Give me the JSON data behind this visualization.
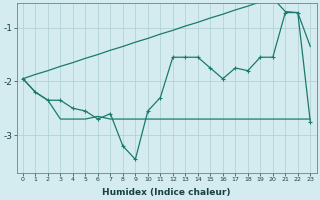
{
  "xlabel": "Humidex (Indice chaleur)",
  "bg_color": "#d4ecef",
  "line_color": "#1a7a6e",
  "grid_color": "#aecdd2",
  "x": [
    0,
    1,
    2,
    3,
    4,
    5,
    6,
    7,
    8,
    9,
    10,
    11,
    12,
    13,
    14,
    15,
    16,
    17,
    18,
    19,
    20,
    21,
    22,
    23
  ],
  "line_straight": [
    -1.95,
    -1.87,
    -1.8,
    -1.72,
    -1.65,
    -1.57,
    -1.5,
    -1.42,
    -1.35,
    -1.27,
    -1.2,
    -1.12,
    -1.05,
    -0.97,
    -0.9,
    -0.82,
    -0.75,
    -0.67,
    -0.6,
    -0.52,
    -0.45,
    -0.7,
    -0.72,
    -1.35
  ],
  "line_jagged": [
    -1.95,
    -2.2,
    -2.35,
    -2.35,
    -2.5,
    -2.55,
    -2.7,
    -2.6,
    -3.2,
    -3.45,
    -2.55,
    -2.3,
    -1.55,
    -1.55,
    -1.55,
    -1.75,
    -1.95,
    -1.75,
    -1.8,
    -1.55,
    -1.55,
    -0.72,
    -0.72,
    -2.75
  ],
  "line_flat": [
    -1.95,
    -2.2,
    -2.35,
    -2.7,
    -2.7,
    -2.7,
    -2.65,
    -2.7,
    -2.7,
    -2.7,
    -2.7,
    -2.7,
    -2.7,
    -2.7,
    -2.7,
    -2.7,
    -2.7,
    -2.7,
    -2.7,
    -2.7,
    -2.7,
    -2.7,
    -2.7,
    -2.7
  ],
  "ylim": [
    -3.7,
    -0.55
  ],
  "xlim": [
    -0.5,
    23.5
  ],
  "yticks": [
    -3.0,
    -2.0,
    -1.0
  ],
  "xticks": [
    0,
    1,
    2,
    3,
    4,
    5,
    6,
    7,
    8,
    9,
    10,
    11,
    12,
    13,
    14,
    15,
    16,
    17,
    18,
    19,
    20,
    21,
    22,
    23
  ]
}
